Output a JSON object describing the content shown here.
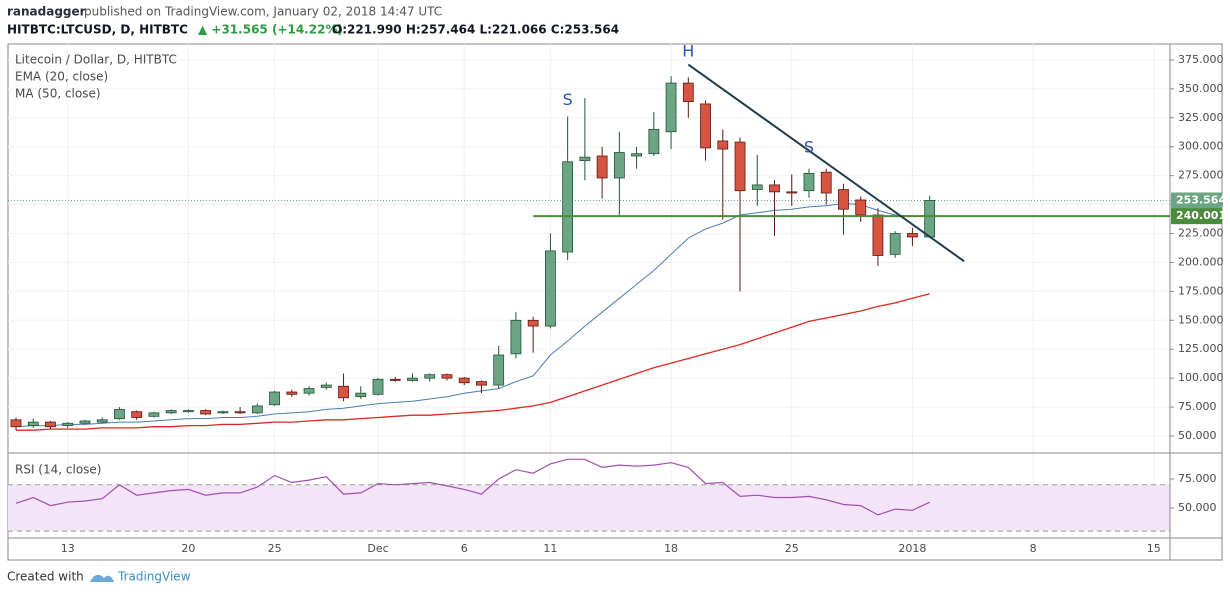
{
  "header": {
    "author": "ranadagger",
    "published": "published on TradingView.com, January 02, 2018 14:47 UTC",
    "symbol": "HITBTC:LTCUSD, D, HITBTC",
    "change": "▲ +31.565 (+14.22%)",
    "ohlc": "O:221.990 H:257.464 L:221.066 C:253.564"
  },
  "footer": {
    "created": "Created with",
    "brand": "TradingView"
  },
  "chart_data": [
    {
      "type": "candlestick",
      "x": [
        "2017-11-10",
        "2017-11-11",
        "2017-11-12",
        "2017-11-13",
        "2017-11-14",
        "2017-11-15",
        "2017-11-16",
        "2017-11-17",
        "2017-11-18",
        "2017-11-19",
        "2017-11-20",
        "2017-11-21",
        "2017-11-22",
        "2017-11-23",
        "2017-11-24",
        "2017-11-25",
        "2017-11-26",
        "2017-11-27",
        "2017-11-28",
        "2017-11-29",
        "2017-11-30",
        "2017-12-01",
        "2017-12-02",
        "2017-12-03",
        "2017-12-04",
        "2017-12-05",
        "2017-12-06",
        "2017-12-07",
        "2017-12-08",
        "2017-12-09",
        "2017-12-10",
        "2017-12-11",
        "2017-12-12",
        "2017-12-13",
        "2017-12-14",
        "2017-12-15",
        "2017-12-16",
        "2017-12-17",
        "2017-12-18",
        "2017-12-19",
        "2017-12-20",
        "2017-12-21",
        "2017-12-22",
        "2017-12-23",
        "2017-12-24",
        "2017-12-25",
        "2017-12-26",
        "2017-12-27",
        "2017-12-28",
        "2017-12-29",
        "2017-12-30",
        "2017-12-31",
        "2018-01-01",
        "2018-01-02"
      ],
      "series": [
        {
          "name": "Litecoin / Dollar, D, HITBTC",
          "up_color": "#6ba583",
          "down_color": "#d75442",
          "open": [
            64,
            59,
            62,
            59,
            61,
            62,
            65,
            71,
            67,
            70,
            71,
            72,
            70,
            71,
            70,
            77,
            88,
            87,
            92,
            93,
            84,
            86,
            99,
            98,
            100,
            103,
            100,
            97,
            94,
            121,
            150,
            145,
            209,
            288,
            292,
            273,
            292,
            294,
            313,
            355,
            337,
            305,
            304,
            263,
            267,
            261,
            262,
            278,
            263,
            254,
            241,
            207,
            225,
            221.99
          ],
          "high": [
            66,
            65,
            63,
            62,
            64,
            66,
            75,
            72,
            71,
            73,
            73,
            73,
            72,
            75,
            78,
            89,
            90,
            93,
            96,
            104,
            93,
            100,
            101,
            104,
            104,
            104,
            101,
            98,
            128,
            157,
            153,
            225,
            326,
            342,
            300,
            313,
            300,
            330,
            361,
            360,
            340,
            315,
            308,
            293,
            271,
            276,
            281,
            281,
            268,
            257,
            247,
            227,
            230,
            257.464
          ],
          "low": [
            55,
            57,
            56,
            57,
            60,
            61,
            64,
            64,
            66,
            69,
            70,
            68,
            69,
            69,
            69,
            76,
            84,
            85,
            90,
            80,
            82,
            85,
            97,
            97,
            97,
            98,
            94,
            87,
            91,
            117,
            122,
            143,
            202,
            271,
            255,
            240,
            281,
            292,
            298,
            325,
            288,
            237,
            175,
            249,
            223,
            249,
            256,
            250,
            224,
            235,
            197,
            204,
            214,
            221.066
          ],
          "close": [
            58,
            62,
            58,
            61,
            63,
            64,
            73,
            66,
            70,
            72,
            72,
            69,
            71,
            70,
            76,
            88,
            86,
            91,
            94,
            83,
            87,
            99,
            98,
            100,
            103,
            100,
            96,
            94,
            120,
            150,
            145,
            210,
            287,
            291,
            273,
            295,
            294,
            315,
            355,
            339,
            299,
            298,
            262,
            267,
            261,
            260,
            277,
            260,
            246,
            241,
            206,
            225,
            222,
            253.564
          ]
        },
        {
          "name": "EMA (20, close)",
          "color": "#4a7eb0",
          "values": [
            58,
            59,
            59,
            60,
            60,
            61,
            62,
            62,
            63,
            64,
            65,
            65,
            66,
            66,
            67,
            69,
            70,
            71,
            73,
            74,
            76,
            78,
            79,
            80,
            82,
            84,
            87,
            89,
            91,
            97,
            102,
            120,
            132,
            145,
            157,
            169,
            181,
            193,
            207,
            221,
            229,
            234,
            241,
            243,
            245,
            246,
            248,
            249,
            251,
            250,
            245,
            241,
            240,
            241
          ]
        },
        {
          "name": "MA (50, close)",
          "color": "#e0281f",
          "values": [
            55,
            55,
            56,
            56,
            56,
            57,
            57,
            57,
            58,
            58,
            59,
            59,
            60,
            60,
            61,
            62,
            62,
            63,
            64,
            64,
            65,
            66,
            67,
            68,
            68,
            69,
            70,
            71,
            72,
            74,
            76,
            79,
            84,
            89,
            94,
            99,
            104,
            109,
            113,
            117,
            121,
            125,
            129,
            134,
            139,
            144,
            149,
            152,
            155,
            158,
            162,
            165,
            169,
            173
          ]
        }
      ],
      "xlim": [
        "2017-11-10",
        "2018-01-16"
      ],
      "xticks": [
        {
          "value": "2017-11-13",
          "label": "13"
        },
        {
          "value": "2017-11-20",
          "label": "20"
        },
        {
          "value": "2017-11-25",
          "label": "25"
        },
        {
          "value": "2017-12-01",
          "label": "Dec"
        },
        {
          "value": "2017-12-06",
          "label": "6"
        },
        {
          "value": "2017-12-11",
          "label": "11"
        },
        {
          "value": "2017-12-18",
          "label": "18"
        },
        {
          "value": "2017-12-25",
          "label": "25"
        },
        {
          "value": "2018-01-01",
          "label": "2018"
        },
        {
          "value": "2018-01-08",
          "label": "8"
        },
        {
          "value": "2018-01-15",
          "label": "15"
        }
      ],
      "ylim": [
        35.3,
        388.8
      ],
      "yticks": [
        {
          "value": 50,
          "label": "50.000"
        },
        {
          "value": 75,
          "label": "75.000"
        },
        {
          "value": 100,
          "label": "100.000"
        },
        {
          "value": 125,
          "label": "125.000"
        },
        {
          "value": 150,
          "label": "150.000"
        },
        {
          "value": 175,
          "label": "175.000"
        },
        {
          "value": 200,
          "label": "200.000"
        },
        {
          "value": 225,
          "label": "225.000"
        },
        {
          "value": 250,
          "label": "250.000"
        },
        {
          "value": 275,
          "label": "275.000"
        },
        {
          "value": 300,
          "label": "300.000"
        },
        {
          "value": 325,
          "label": "325.000"
        },
        {
          "value": 350,
          "label": "350.000"
        },
        {
          "value": 375,
          "label": "375.000"
        }
      ],
      "grid": true,
      "last_price": 253.564,
      "level": {
        "value": 240.001,
        "from": "2017-12-10",
        "color": "#4b8b3b"
      },
      "lines": [
        {
          "from": [
            "2017-12-19",
            371
          ],
          "to": [
            "2018-01-04",
            201
          ],
          "color": "#1f3b4d"
        }
      ],
      "annotations": [
        {
          "text": "S",
          "x": "2017-12-12",
          "y": 340
        },
        {
          "text": "H",
          "x": "2017-12-19",
          "y": 382
        },
        {
          "text": "S",
          "x": "2017-12-26",
          "y": 299
        }
      ]
    },
    {
      "type": "line",
      "series": [
        {
          "name": "RSI (14, close)",
          "color": "#a24fb0",
          "values": [
            54,
            59,
            52,
            55,
            56,
            58,
            70,
            61,
            63,
            65,
            66,
            61,
            63,
            63,
            68,
            78,
            72,
            74,
            77,
            62,
            63,
            71,
            70,
            71,
            72,
            69,
            66,
            62,
            75,
            83,
            80,
            88,
            92,
            92,
            85,
            87,
            86,
            87,
            89,
            85,
            71,
            72,
            60,
            61,
            59,
            59,
            60,
            57,
            53,
            52,
            44,
            49,
            48,
            55
          ]
        }
      ],
      "ylim": [
        24.1,
        97.4
      ],
      "yticks": [
        {
          "value": 50,
          "label": "50.000"
        },
        {
          "value": 75,
          "label": "75.000"
        }
      ],
      "levels": [
        70,
        30
      ],
      "band_color": "#f3e4f7"
    }
  ]
}
